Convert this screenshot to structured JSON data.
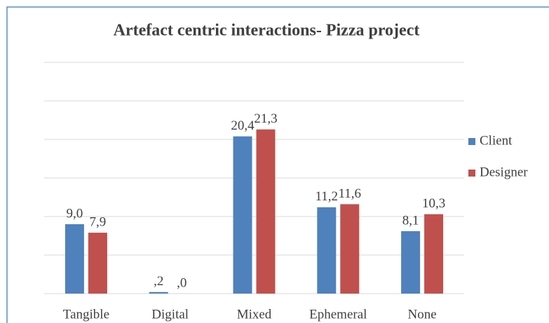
{
  "chart_data": {
    "type": "bar",
    "title": "Artefact centric interactions- Pizza project",
    "categories": [
      "Tangible",
      "Digital",
      "Mixed",
      "Ephemeral",
      "None"
    ],
    "series": [
      {
        "name": "Client",
        "color": "#4f81bd",
        "values": [
          9.0,
          0.2,
          20.4,
          11.2,
          8.1
        ],
        "value_labels": [
          "9,0",
          ",2",
          "20,4",
          "11,2",
          "8,1"
        ]
      },
      {
        "name": "Designer",
        "color": "#c0504d",
        "values": [
          7.9,
          0.0,
          21.3,
          11.6,
          10.3
        ],
        "value_labels": [
          "7,9",
          ",0",
          "21,3",
          "11,6",
          "10,3"
        ]
      }
    ],
    "ylim": [
      0,
      30
    ],
    "yticks": [
      0,
      5,
      10,
      15,
      20,
      25,
      30
    ],
    "grid": true,
    "legend": "right"
  }
}
